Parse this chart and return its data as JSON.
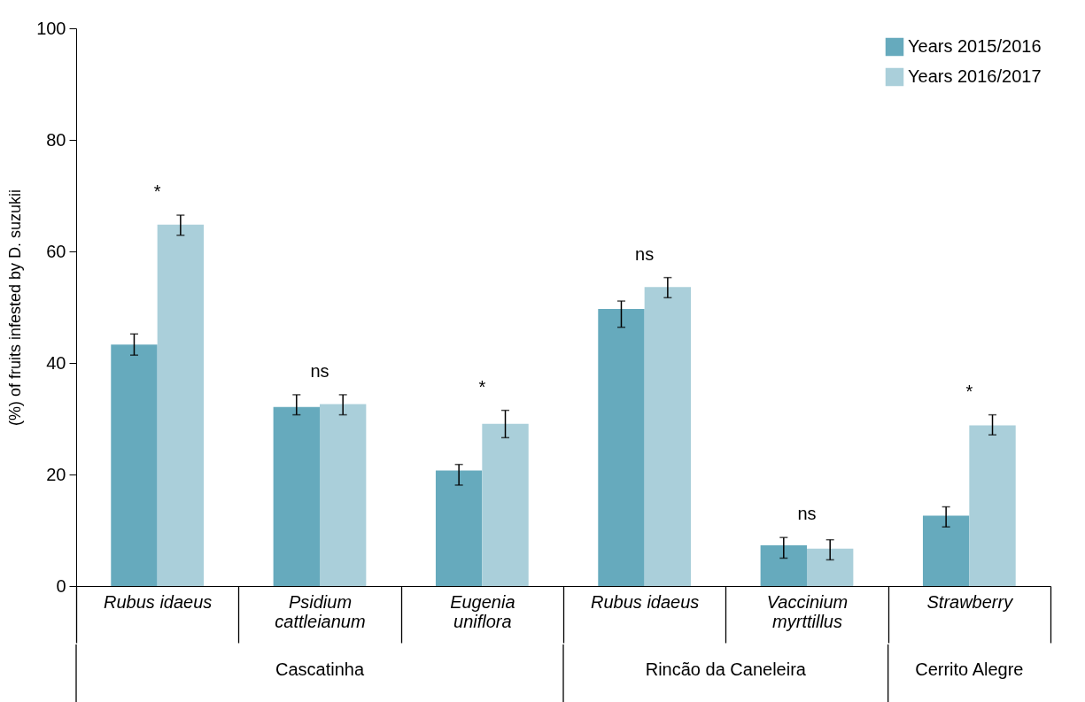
{
  "chart_data": {
    "type": "bar",
    "ylabel": "(%) of fruits infested by D. suzukii",
    "categories": [
      "Rubus idaeus",
      "Psidium cattleianum",
      "Eugenia uniflora",
      "Rubus idaeus",
      "Vaccinium myrttillus",
      "Strawberry"
    ],
    "series": [
      {
        "name": "Years 2015/2016",
        "color": "#66aabd",
        "values": [
          43.3,
          32.1,
          20.7,
          49.7,
          7.3,
          12.6
        ],
        "errors": [
          [
            41.4,
            45.2
          ],
          [
            30.7,
            34.3
          ],
          [
            18.1,
            21.8
          ],
          [
            46.4,
            51.1
          ],
          [
            5.0,
            8.7
          ],
          [
            10.6,
            14.2
          ]
        ]
      },
      {
        "name": "Years 2016/2017",
        "color": "#aacfda",
        "values": [
          64.8,
          32.6,
          29.1,
          53.6,
          6.7,
          28.8
        ],
        "errors": [
          [
            62.9,
            66.5
          ],
          [
            30.7,
            34.3
          ],
          [
            26.6,
            31.5
          ],
          [
            51.7,
            55.3
          ],
          [
            4.7,
            8.3
          ],
          [
            27.1,
            30.7
          ]
        ]
      }
    ],
    "ylim": [
      0,
      100
    ],
    "yticks": [
      0,
      20,
      40,
      60,
      80,
      100
    ],
    "grid": false,
    "legend": "top right",
    "annotations": [
      "*",
      "ns",
      "*",
      "ns",
      "ns",
      "*",
      "Cascatinha",
      "Rincão da Caneleira",
      "Cerrito Alegre"
    ]
  }
}
